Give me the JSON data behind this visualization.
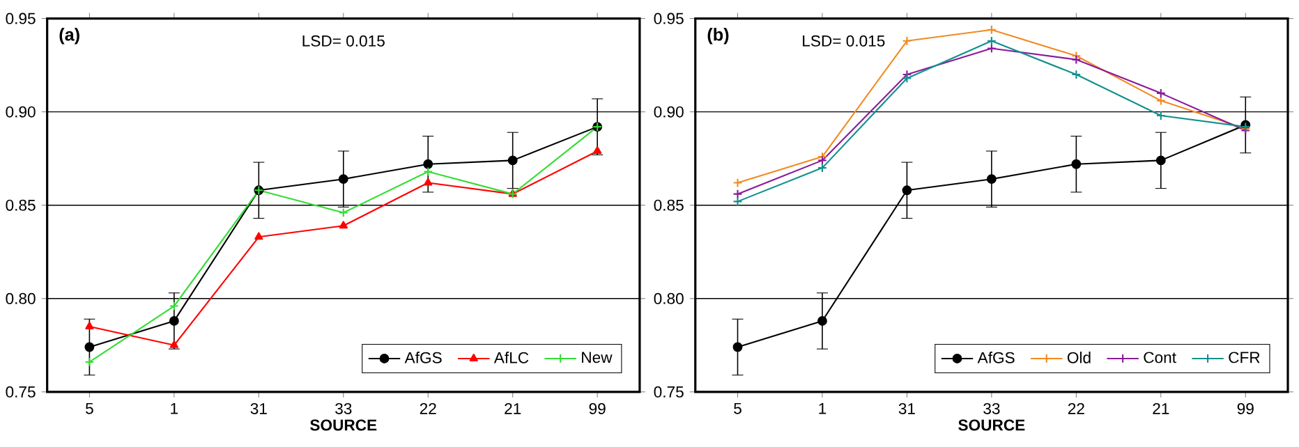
{
  "chart_data": [
    {
      "type": "line",
      "categories": [
        "5",
        "1",
        "31",
        "33",
        "22",
        "21",
        "99"
      ],
      "xlabel": "SOURCE",
      "annotations": [
        "(a)",
        "LSD= 0.015"
      ],
      "ylim": [
        0.75,
        0.95
      ],
      "yticks": [
        {
          "value": 0.75,
          "label": "0.75"
        },
        {
          "value": 0.8,
          "label": "0.80"
        },
        {
          "value": 0.85,
          "label": "0.85"
        },
        {
          "value": 0.9,
          "label": "0.90"
        },
        {
          "value": 0.95,
          "label": "0.95"
        }
      ],
      "grid": "y",
      "legend": "bottom right",
      "line_style": "solid",
      "series": [
        {
          "name": "AfGS",
          "color": "#000000",
          "marker": "circle",
          "values": [
            0.774,
            0.788,
            0.858,
            0.864,
            0.872,
            0.874,
            0.892
          ],
          "errors": [
            0.015,
            0.015,
            0.015,
            0.015,
            0.015,
            0.015,
            0.015
          ]
        },
        {
          "name": "AfLC",
          "color": "#ff0000",
          "marker": "triangle",
          "values": [
            0.785,
            0.775,
            0.833,
            0.839,
            0.862,
            0.856,
            0.879
          ]
        },
        {
          "name": "New",
          "color": "#33dd33",
          "marker": "cross",
          "values": [
            0.766,
            0.796,
            0.858,
            0.846,
            0.868,
            0.856,
            0.892
          ]
        }
      ]
    },
    {
      "type": "line",
      "categories": [
        "5",
        "1",
        "31",
        "33",
        "22",
        "21",
        "99"
      ],
      "xlabel": "SOURCE",
      "annotations": [
        "(b)",
        "LSD= 0.015"
      ],
      "ylim": [
        0.75,
        0.95
      ],
      "yticks": [
        {
          "value": 0.75,
          "label": "0.75"
        },
        {
          "value": 0.8,
          "label": "0.80"
        },
        {
          "value": 0.85,
          "label": "0.85"
        },
        {
          "value": 0.9,
          "label": "0.90"
        },
        {
          "value": 0.95,
          "label": "0.95"
        }
      ],
      "grid": "y",
      "legend": "bottom right",
      "line_style": "solid",
      "series": [
        {
          "name": "AfGS",
          "color": "#000000",
          "marker": "circle",
          "values": [
            0.774,
            0.788,
            0.858,
            0.864,
            0.872,
            0.874,
            0.893
          ],
          "errors": [
            0.015,
            0.015,
            0.015,
            0.015,
            0.015,
            0.015,
            0.015
          ]
        },
        {
          "name": "Old",
          "color": "#f28a20",
          "marker": "cross",
          "values": [
            0.862,
            0.876,
            0.938,
            0.944,
            0.93,
            0.906,
            0.891
          ]
        },
        {
          "name": "Cont",
          "color": "#8b1a9b",
          "marker": "cross",
          "values": [
            0.856,
            0.874,
            0.92,
            0.934,
            0.928,
            0.91,
            0.89
          ]
        },
        {
          "name": "CFR",
          "color": "#12908e",
          "marker": "cross",
          "values": [
            0.852,
            0.87,
            0.918,
            0.938,
            0.92,
            0.898,
            0.892
          ]
        }
      ]
    }
  ]
}
